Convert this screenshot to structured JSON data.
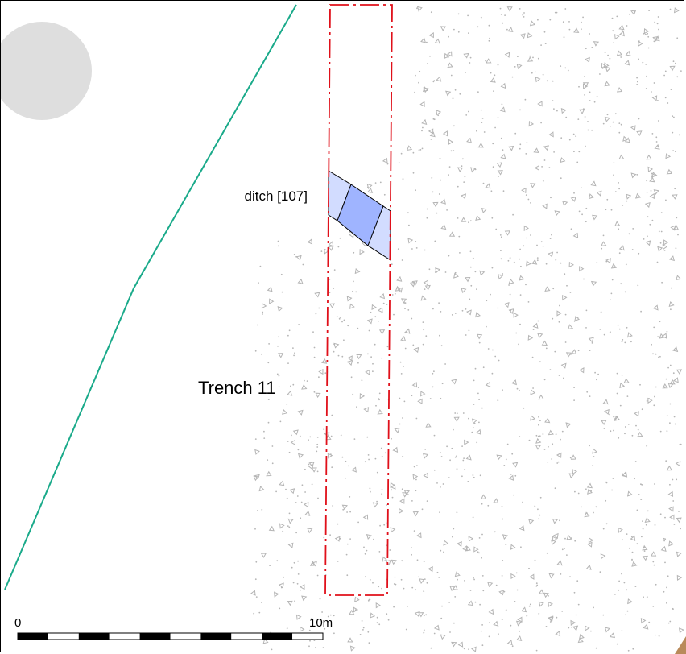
{
  "plan": {
    "labels": {
      "feature": "ditch [107]",
      "trench": "Trench 11"
    },
    "scale_bar": {
      "start_label": "0",
      "end_label": "10m",
      "segments": 10
    },
    "colors": {
      "trench_outline": "#e0101a",
      "boundary_line": "#1aaa8a",
      "ditch_fill": "#9fb4ff",
      "ditch_fill_light": "#d2dcff",
      "ground_shape": "#dedede",
      "stipple": "#b5b5b5",
      "corner_feature": "#b98a5a"
    }
  }
}
